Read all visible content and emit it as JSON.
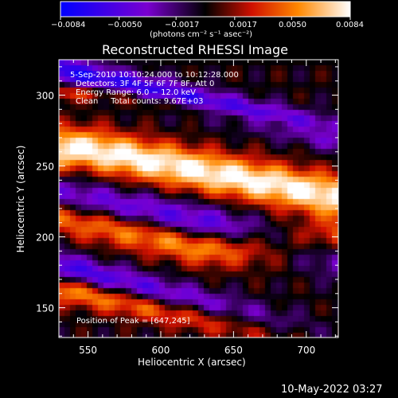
{
  "colorbar": {
    "tick_labels": [
      "−0.0084",
      "−0.0050",
      "−0.0017",
      "0.0017",
      "0.0050",
      "0.0084"
    ],
    "unit_text": "(photons cm⁻² s⁻¹ asec⁻²)",
    "range": [
      -0.0084,
      0.0084
    ]
  },
  "image_info": {
    "time_range": "5‑Sep‑2010 10:10:24.000 to 10:12:28.000",
    "detectors": "Detectors: 3F 4F 5F 6F 7F 8F, Att 0",
    "energy_range": "Energy Range: 6.0 − 12.0 keV",
    "algorithm": "Clean     Total counts: 9.67E+03",
    "peak_label": "Position of Peak = [647,245]"
  },
  "footer": {
    "date": "10‑May‑2022 03:27"
  },
  "chart_data": {
    "type": "heatmap",
    "title": "Reconstructed RHESSI Image",
    "xlabel": "Heliocentric X (arcsec)",
    "ylabel": "Heliocentric Y (arcsec)",
    "xlim": [
      530,
      722
    ],
    "ylim": [
      129,
      325
    ],
    "x_ticks": [
      550,
      600,
      650,
      700
    ],
    "y_ticks": [
      150,
      200,
      250,
      300
    ],
    "x_tick_labels": [
      "550",
      "600",
      "650",
      "700"
    ],
    "y_tick_labels": [
      "150",
      "200",
      "250",
      "300"
    ],
    "peak_position": [
      647,
      245
    ],
    "colormap": [
      "#0000ff",
      "#7a00d0",
      "#000000",
      "#d01000",
      "#ff8800",
      "#ffffff"
    ],
    "bands": [
      {
        "x1": 530,
        "y1": 226,
        "x2": 722,
        "y2": 188,
        "half_width": 14,
        "amp": -0.008
      },
      {
        "x1": 530,
        "y1": 318,
        "x2": 722,
        "y2": 272,
        "half_width": 10,
        "amp": -0.007
      },
      {
        "x1": 530,
        "y1": 178,
        "x2": 722,
        "y2": 126,
        "half_width": 11,
        "amp": -0.007
      },
      {
        "x1": 548,
        "y1": 262,
        "x2": 722,
        "y2": 228,
        "half_width": 15,
        "amp": 0.0084
      },
      {
        "x1": 530,
        "y1": 218,
        "x2": 630,
        "y2": 195,
        "half_width": 14,
        "amp": 0.0084
      },
      {
        "x1": 530,
        "y1": 165,
        "x2": 722,
        "y2": 126,
        "half_width": 11,
        "amp": 0.0065
      },
      {
        "x1": 560,
        "y1": 302,
        "x2": 722,
        "y2": 272,
        "half_width": 6,
        "amp": 0.004
      }
    ]
  }
}
